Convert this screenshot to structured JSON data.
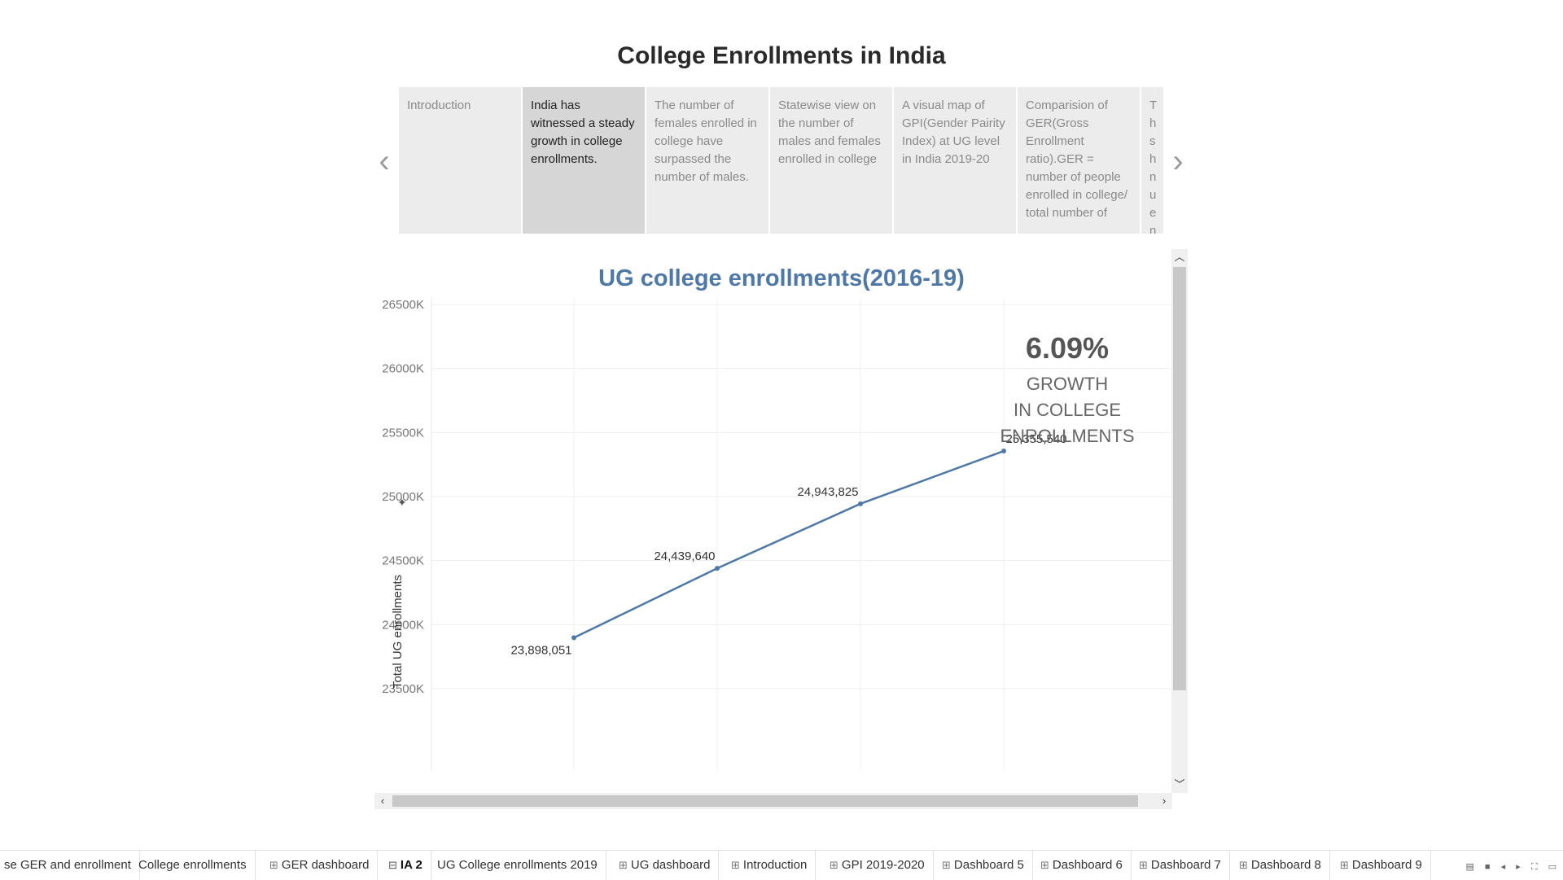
{
  "story": {
    "title": "College Enrollments in India",
    "points": [
      {
        "label": "Introduction",
        "active": false
      },
      {
        "label": "India has witnessed a steady growth in college enrollments.",
        "active": true
      },
      {
        "label": "The number of females enrolled in college have surpassed the number of males.",
        "active": false
      },
      {
        "label": "Statewise view on the number of males and females enrolled in college",
        "active": false
      },
      {
        "label": "A visual map of GPI(Gender Pairity Index) at UG level in India 2019-20",
        "active": false
      },
      {
        "label": "Comparision of GER(Gross Enrollment ratio).GER = number of people enrolled in college/ total number of",
        "active": false
      },
      {
        "label": "Th sh nu en GE",
        "active": false
      }
    ],
    "prev_icon": "chevron-left-icon",
    "next_icon": "chevron-right-icon"
  },
  "annotation": {
    "percent": "6.09%",
    "line1": "GROWTH",
    "line2": "IN COLLEGE",
    "line3": "ENROLLMENTS"
  },
  "chart_data": {
    "type": "line",
    "title": "UG college enrollments(2016-19)",
    "xlabel": "",
    "ylabel": "Total UG enrollments",
    "yticks": [
      "23500K",
      "24000K",
      "24500K",
      "25000K",
      "25500K",
      "26000K",
      "26500K"
    ],
    "ylim": [
      23500000,
      26500000
    ],
    "x": [
      1,
      2,
      3,
      4
    ],
    "values": [
      23898051,
      24439640,
      24943825,
      25355540
    ],
    "labels": [
      "23,898,051",
      "24,439,640",
      "24,943,825",
      "25,355,540"
    ],
    "grid": true,
    "color": "#4e79a7"
  },
  "tabs": [
    {
      "label": "se GER and enrollment",
      "icon": ""
    },
    {
      "label": "College enrollments",
      "icon": ""
    },
    {
      "label": "GER dashboard",
      "icon": "dashboard-icon"
    },
    {
      "label": "IA 2",
      "icon": "story-icon",
      "active": true
    },
    {
      "label": "UG College enrollments 2019",
      "icon": ""
    },
    {
      "label": "UG dashboard",
      "icon": "dashboard-icon"
    },
    {
      "label": "Introduction",
      "icon": "dashboard-icon"
    },
    {
      "label": "GPI 2019-2020",
      "icon": "dashboard-icon"
    },
    {
      "label": "Dashboard 5",
      "icon": "dashboard-icon"
    },
    {
      "label": "Dashboard 6",
      "icon": "dashboard-icon"
    },
    {
      "label": "Dashboard 7",
      "icon": "dashboard-icon"
    },
    {
      "label": "Dashboard 8",
      "icon": "dashboard-icon"
    },
    {
      "label": "Dashboard 9",
      "icon": "dashboard-icon"
    }
  ]
}
